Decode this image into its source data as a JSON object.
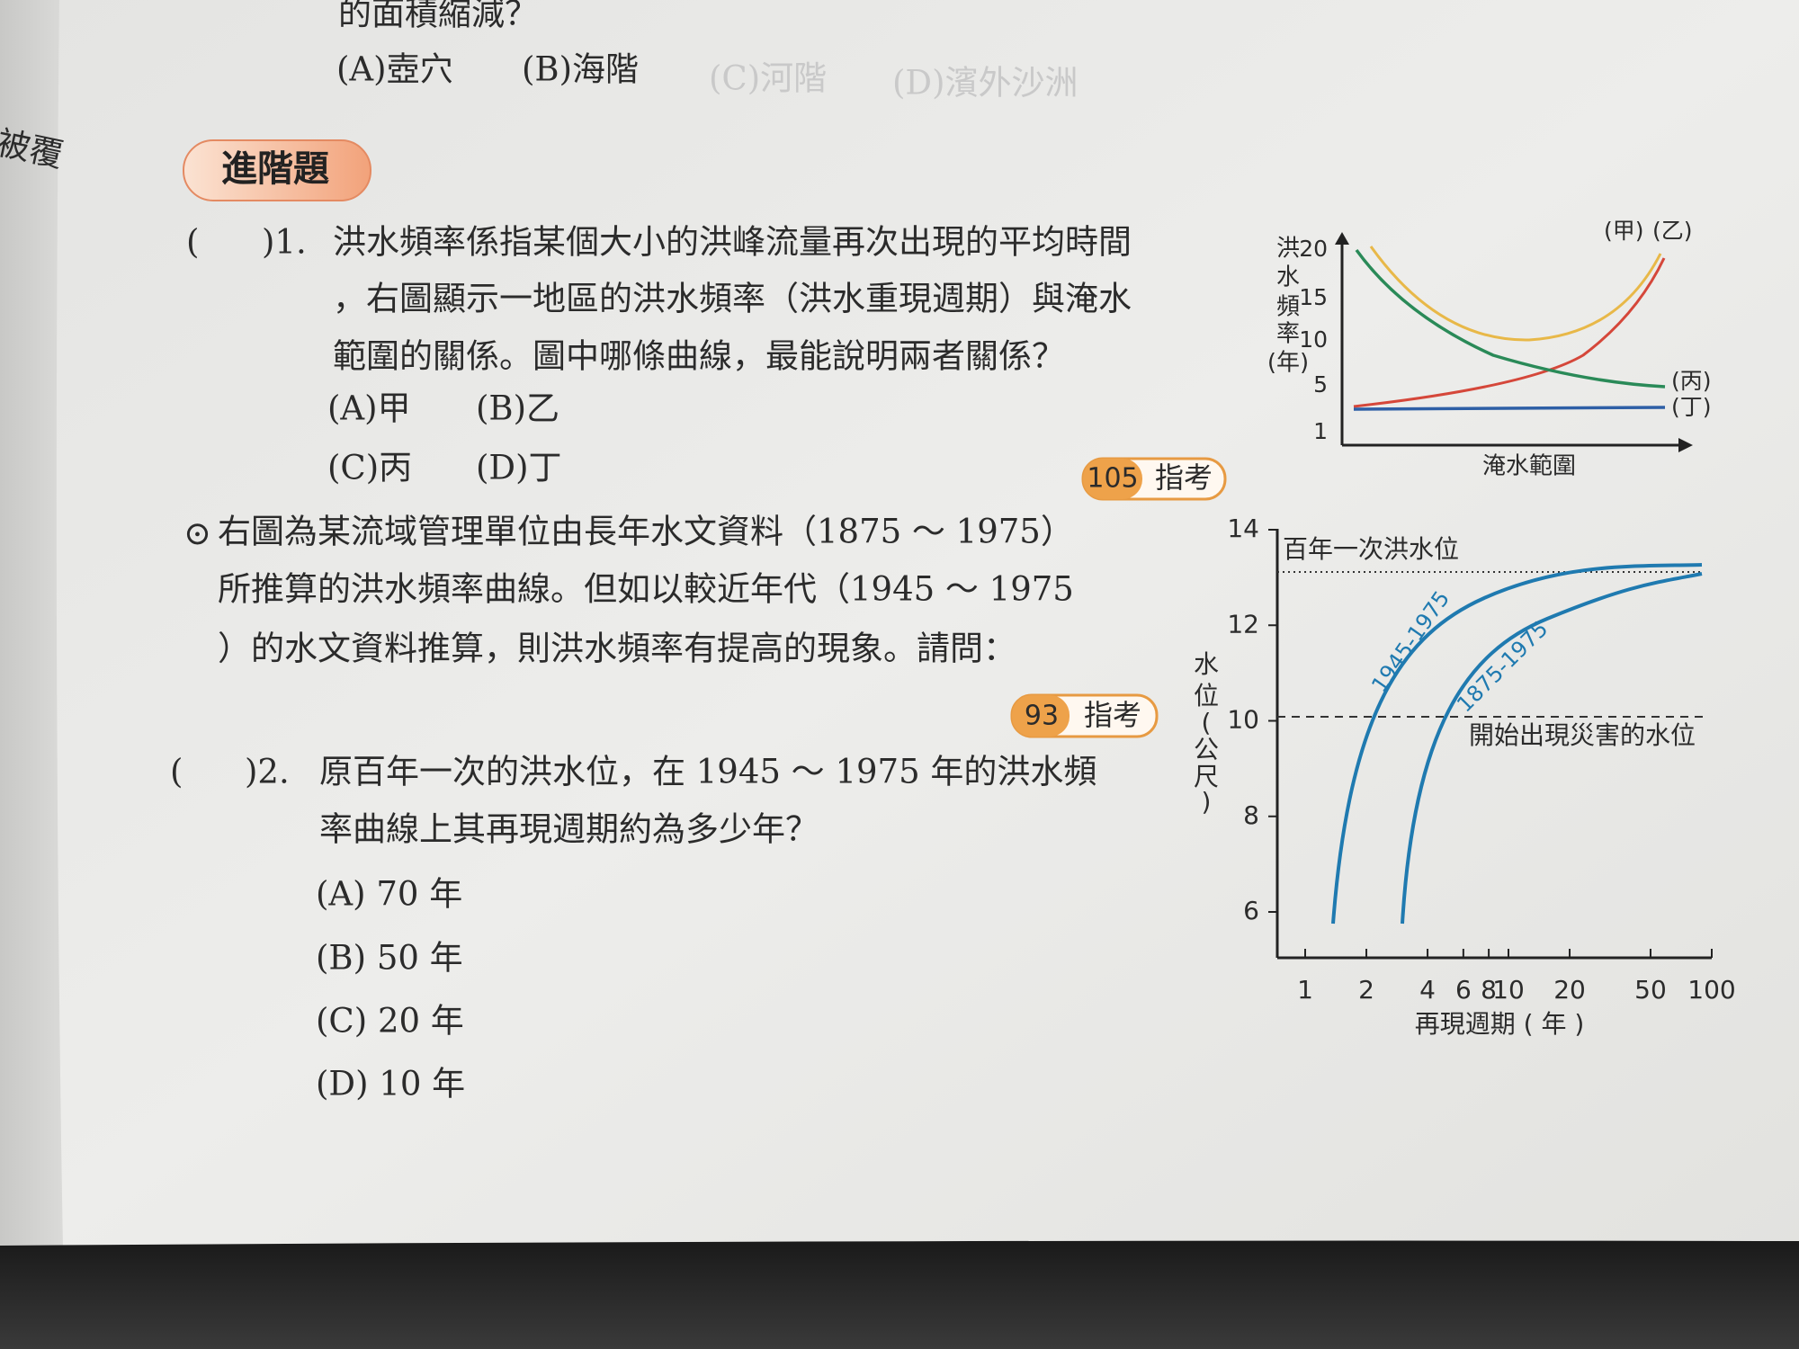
{
  "previous_question": {
    "stem_tail": "的面積縮減？",
    "options": [
      "(A)壺穴",
      "(B)海階",
      "(C)河階",
      "(D)濱外沙洲"
    ]
  },
  "margin_text": "被覆",
  "section_badge": "進階題",
  "question_1": {
    "open_paren": "(",
    "number": ")1.",
    "text_lines": [
      "洪水頻率係指某個大小的洪峰流量再次出現的平均時間",
      "，右圖顯示一地區的洪水頻率（洪水重現週期）與淹水",
      "範圍的關係。圖中哪條曲線，最能說明兩者關係？"
    ],
    "options": [
      "(A)甲",
      "(B)乙",
      "(C)丙",
      "(D)丁"
    ],
    "exam_tag": {
      "year": "105",
      "label": "指考"
    }
  },
  "figure_1": {
    "y_label": [
      "洪",
      "水",
      "頻",
      "率",
      "(年)"
    ],
    "yticks": [
      20,
      15,
      10,
      5,
      1
    ],
    "x_label": "淹水範圍",
    "curve_labels": [
      "(甲)",
      "(乙)",
      "(丙)",
      "(丁)"
    ]
  },
  "passage": {
    "marker": "⊙",
    "lines": [
      "右圖為某流域管理單位由長年水文資料（1875 ～ 1975）",
      "所推算的洪水頻率曲線。但如以較近年代（1945 ～ 1975",
      "）的水文資料推算，則洪水頻率有提高的現象。請問："
    ],
    "exam_tag": {
      "year": "93",
      "label": "指考"
    }
  },
  "question_2": {
    "open_paren": "(",
    "number": ")2.",
    "text_lines": [
      "原百年一次的洪水位，在 1945 ～ 1975 年的洪水頻",
      "率曲線上其再現週期約為多少年？"
    ],
    "options": [
      "(A) 70 年",
      "(B) 50 年",
      "(C) 20 年",
      "(D) 10 年"
    ]
  },
  "figure_2": {
    "y_label": [
      "水",
      "位",
      "(",
      "公",
      "尺",
      ")"
    ],
    "yticks": [
      14,
      12,
      10,
      8,
      6
    ],
    "xticks": [
      1,
      2,
      4,
      6,
      8,
      10,
      20,
      50,
      100
    ],
    "x_label": "再現週期 ( 年 )",
    "annotations": [
      "百年一次洪水位",
      "開始出現災害的水位"
    ],
    "curve_labels": [
      "1945-1975",
      "1875-1975"
    ]
  }
}
